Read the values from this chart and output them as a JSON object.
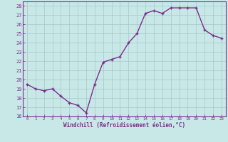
{
  "x": [
    0,
    1,
    2,
    3,
    4,
    5,
    6,
    7,
    8,
    9,
    10,
    11,
    12,
    13,
    14,
    15,
    16,
    17,
    18,
    19,
    20,
    21,
    22,
    23
  ],
  "y": [
    19.5,
    19.0,
    18.8,
    19.0,
    18.2,
    17.5,
    17.2,
    16.4,
    19.5,
    21.9,
    22.2,
    22.5,
    24.0,
    25.0,
    27.2,
    27.5,
    27.2,
    27.8,
    27.8,
    27.8,
    27.8,
    25.4,
    24.8,
    24.5
  ],
  "line_color": "#7B2D8B",
  "marker": "+",
  "marker_color": "#7B2D8B",
  "bg_color": "#C8E8E8",
  "grid_color": "#A8C8C8",
  "xlabel": "Windchill (Refroidissement éolien,°C)",
  "xlabel_color": "#7B2D8B",
  "ylim": [
    16,
    28.5
  ],
  "xlim": [
    -0.5,
    23.5
  ],
  "yticks": [
    16,
    17,
    18,
    19,
    20,
    21,
    22,
    23,
    24,
    25,
    26,
    27,
    28
  ],
  "xticks": [
    0,
    1,
    2,
    3,
    4,
    5,
    6,
    7,
    8,
    9,
    10,
    11,
    12,
    13,
    14,
    15,
    16,
    17,
    18,
    19,
    20,
    21,
    22,
    23
  ],
  "tick_color": "#7B2D8B",
  "spine_color": "#7B2D8B",
  "linewidth": 1.0,
  "markersize": 3.5
}
